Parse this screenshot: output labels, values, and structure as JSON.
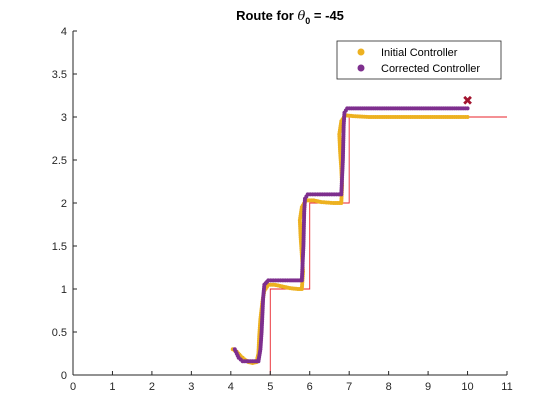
{
  "chart_data": {
    "type": "scatter",
    "title": {
      "prefix": "Route for ",
      "symbol": "θ",
      "subscript": "0",
      "suffix": " = -45"
    },
    "xlabel": "",
    "ylabel": "",
    "xlim": [
      0,
      11
    ],
    "ylim": [
      0,
      4
    ],
    "xticks": [
      "0",
      "1",
      "2",
      "3",
      "4",
      "5",
      "6",
      "7",
      "8",
      "9",
      "10",
      "11"
    ],
    "yticks": [
      "0",
      "0.5",
      "1",
      "1.5",
      "2",
      "2.5",
      "3",
      "3.5",
      "4"
    ],
    "grid": false,
    "legend_position": "top-right",
    "reference_path": {
      "color": "#e8202a",
      "points": [
        [
          5,
          0
        ],
        [
          5,
          1
        ],
        [
          6,
          1
        ],
        [
          6,
          2
        ],
        [
          7,
          2
        ],
        [
          7,
          3
        ],
        [
          11,
          3
        ]
      ]
    },
    "series": [
      {
        "name": "Initial Controller",
        "color": "#edb120",
        "points": [
          [
            4.05,
            0.3
          ],
          [
            4.15,
            0.27
          ],
          [
            4.25,
            0.22
          ],
          [
            4.35,
            0.18
          ],
          [
            4.45,
            0.15
          ],
          [
            4.55,
            0.14
          ],
          [
            4.65,
            0.15
          ],
          [
            4.7,
            0.25
          ],
          [
            4.72,
            0.45
          ],
          [
            4.75,
            0.65
          ],
          [
            4.8,
            0.85
          ],
          [
            4.85,
            0.98
          ],
          [
            4.95,
            1.05
          ],
          [
            5.1,
            1.05
          ],
          [
            5.3,
            1.03
          ],
          [
            5.5,
            1.01
          ],
          [
            5.7,
            1.0
          ],
          [
            5.8,
            1.0
          ],
          [
            5.83,
            1.2
          ],
          [
            5.8,
            1.4
          ],
          [
            5.77,
            1.6
          ],
          [
            5.75,
            1.8
          ],
          [
            5.8,
            1.95
          ],
          [
            5.9,
            2.03
          ],
          [
            6.1,
            2.03
          ],
          [
            6.3,
            2.01
          ],
          [
            6.6,
            2.0
          ],
          [
            6.8,
            2.0
          ],
          [
            6.82,
            2.2
          ],
          [
            6.8,
            2.4
          ],
          [
            6.77,
            2.6
          ],
          [
            6.75,
            2.8
          ],
          [
            6.8,
            2.95
          ],
          [
            6.9,
            3.02
          ],
          [
            7.1,
            3.01
          ],
          [
            7.5,
            3.0
          ],
          [
            8.0,
            3.0
          ],
          [
            9.0,
            3.0
          ],
          [
            10.0,
            3.0
          ]
        ]
      },
      {
        "name": "Corrected Controller",
        "color": "#7e2f8e",
        "points": [
          [
            4.1,
            0.3
          ],
          [
            4.2,
            0.2
          ],
          [
            4.3,
            0.16
          ],
          [
            4.5,
            0.16
          ],
          [
            4.7,
            0.16
          ],
          [
            4.75,
            0.3
          ],
          [
            4.78,
            0.5
          ],
          [
            4.8,
            0.7
          ],
          [
            4.82,
            0.9
          ],
          [
            4.85,
            1.05
          ],
          [
            4.95,
            1.1
          ],
          [
            5.2,
            1.1
          ],
          [
            5.5,
            1.1
          ],
          [
            5.7,
            1.1
          ],
          [
            5.8,
            1.1
          ],
          [
            5.82,
            1.3
          ],
          [
            5.84,
            1.5
          ],
          [
            5.85,
            1.7
          ],
          [
            5.86,
            1.9
          ],
          [
            5.88,
            2.05
          ],
          [
            5.95,
            2.1
          ],
          [
            6.2,
            2.1
          ],
          [
            6.5,
            2.1
          ],
          [
            6.8,
            2.1
          ],
          [
            6.82,
            2.3
          ],
          [
            6.84,
            2.5
          ],
          [
            6.85,
            2.7
          ],
          [
            6.86,
            2.9
          ],
          [
            6.88,
            3.05
          ],
          [
            6.95,
            3.1
          ],
          [
            7.5,
            3.1
          ],
          [
            8.0,
            3.1
          ],
          [
            8.5,
            3.1
          ],
          [
            9.0,
            3.1
          ],
          [
            9.5,
            3.1
          ],
          [
            10.0,
            3.1
          ]
        ]
      }
    ],
    "target_marker": {
      "point": [
        10,
        3.2
      ],
      "color": "#a2142f",
      "symbol": "✖"
    }
  }
}
